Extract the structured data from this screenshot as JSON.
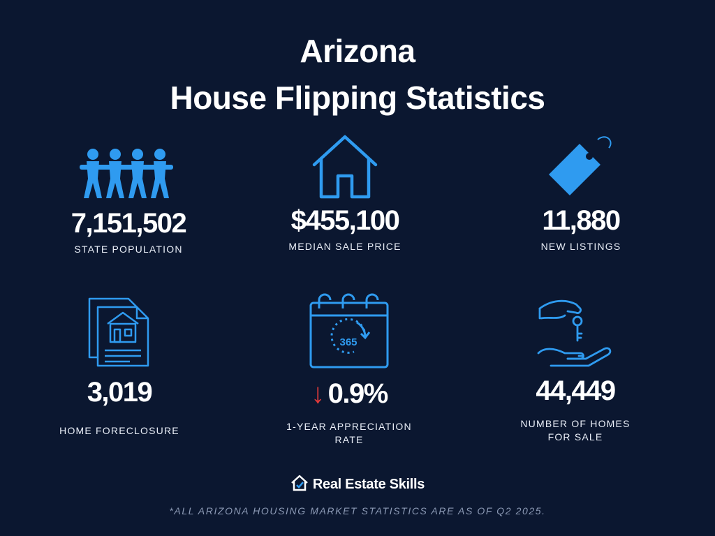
{
  "title": {
    "line1": "Arizona",
    "line2": "House Flipping Statistics"
  },
  "stats": [
    {
      "value": "7,151,502",
      "label": "STATE POPULATION",
      "icon": "people-chain-icon"
    },
    {
      "value": "$455,100",
      "label": "MEDIAN SALE PRICE",
      "icon": "house-icon"
    },
    {
      "value": "11,880",
      "label": "NEW LISTINGS",
      "icon": "price-tag-icon"
    },
    {
      "value": "3,019",
      "label": "HOME FORECLOSURE",
      "icon": "foreclosure-document-icon"
    },
    {
      "value": "0.9%",
      "label_line1": "1-YEAR APPRECIATION",
      "label_line2": "RATE",
      "icon": "calendar-365-icon",
      "trend": "down"
    },
    {
      "value": "44,449",
      "label_line1": "NUMBER OF HOMES",
      "label_line2": "FOR SALE",
      "icon": "hand-keys-icon"
    }
  ],
  "calendar_text": "365",
  "brand": {
    "name": "Real Estate Skills",
    "icon": "house-check-icon"
  },
  "footnote": "*ALL ARIZONA HOUSING MARKET STATISTICS ARE AS OF Q2 2025.",
  "colors": {
    "background": "#0b1730",
    "accent": "#2f9bf0",
    "down_arrow": "#e23a3a"
  }
}
